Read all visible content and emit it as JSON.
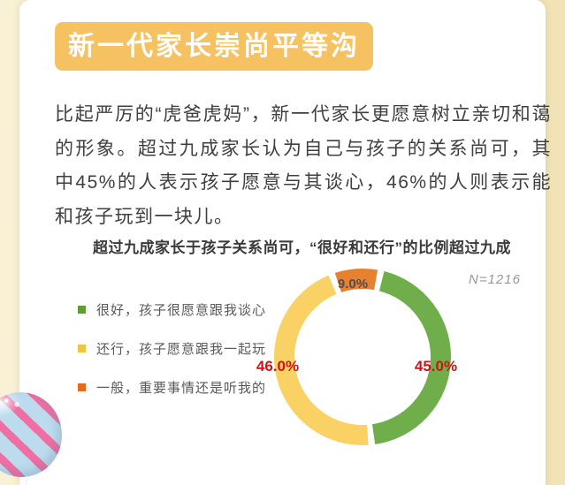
{
  "page": {
    "background_color": "#f6ecca",
    "card_color": "#ffffff"
  },
  "header": {
    "title": "新一代家长崇尚平等沟通",
    "badge_color": "#f5c161",
    "text_color": "#ffffff"
  },
  "intro": {
    "text": "比起严厉的“虎爸虎妈”，新一代家长更愿意树立亲切和蔼的形象。超过九成家长认为自己与孩子的关系尚可，其中45%的人表示孩子愿意与其谈心，46%的人则表示能和孩子玩到一块儿。"
  },
  "chart_data": {
    "type": "pie",
    "donut": true,
    "title": "超过九成家长于孩子关系尚可，“很好和还行”的比例超过九成",
    "sample_label": "N=1216",
    "legend_position": "left",
    "start_angle_deg": 12,
    "series": [
      {
        "label": "很好，孩子很愿意跟我谈心",
        "value": 45.0,
        "display": "45.0%",
        "color": "#6fae4b",
        "swatch_color": "#5f9e35"
      },
      {
        "label": "还行，孩子愿意跟我一起玩",
        "value": 46.0,
        "display": "46.0%",
        "color": "#f9d164",
        "swatch_color": "#f3c440"
      },
      {
        "label": "一般，重要事情还是听我的",
        "value": 9.0,
        "display": "9.0%",
        "color": "#e8812f",
        "swatch_color": "#e56b1e"
      }
    ],
    "major_label_color": "#cc1414",
    "minor_label_color": "#4f4f4f"
  },
  "decoration": {
    "candy": "pink-blue striped candy lollipop"
  }
}
